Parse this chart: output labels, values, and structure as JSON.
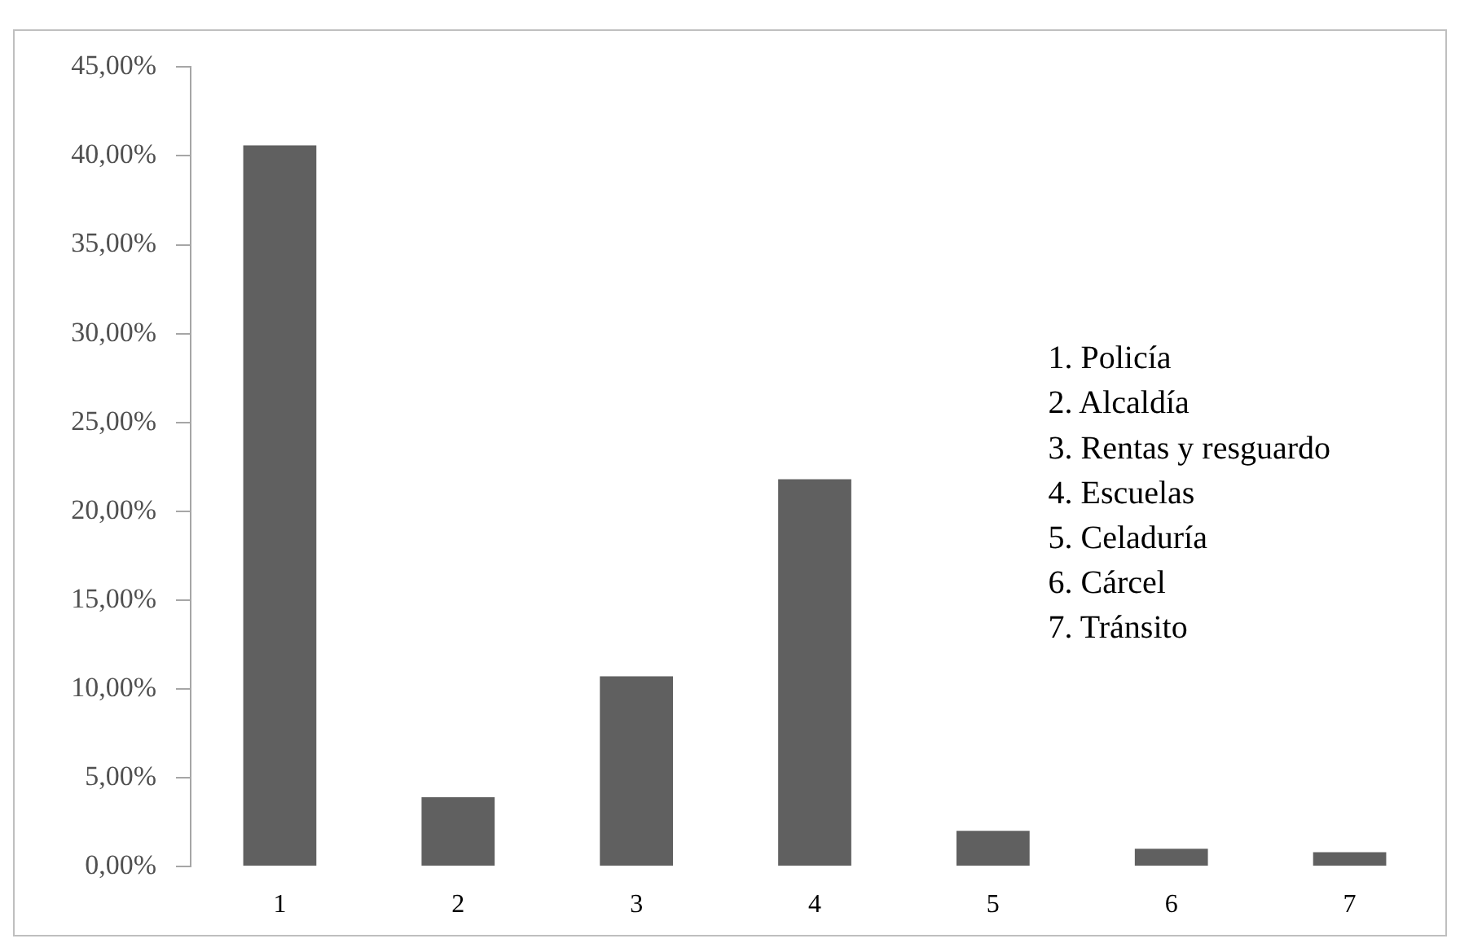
{
  "chart_data": {
    "type": "bar",
    "categories": [
      "1",
      "2",
      "3",
      "4",
      "5",
      "6",
      "7"
    ],
    "values": [
      40.6,
      3.9,
      10.7,
      21.8,
      2.0,
      1.0,
      0.8
    ],
    "color": "#606060",
    "ylim": [
      0,
      45
    ],
    "yticks": [
      {
        "value": 0,
        "label": "0,00%"
      },
      {
        "value": 5,
        "label": "5,00%"
      },
      {
        "value": 10,
        "label": "10,00%"
      },
      {
        "value": 15,
        "label": "15,00%"
      },
      {
        "value": 20,
        "label": "20,00%"
      },
      {
        "value": 25,
        "label": "25,00%"
      },
      {
        "value": 30,
        "label": "30,00%"
      },
      {
        "value": 35,
        "label": "35,00%"
      },
      {
        "value": 40,
        "label": "40,00%"
      },
      {
        "value": 45,
        "label": "45,00%"
      }
    ],
    "annotations": [
      "1. Policía",
      "2. Alcaldía",
      "3. Rentas y resguardo",
      "4. Escuelas",
      "5. Celaduría",
      "6. Cárcel",
      "7. Tránsito"
    ]
  }
}
